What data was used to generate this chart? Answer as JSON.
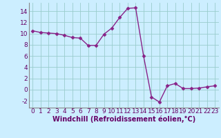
{
  "x": [
    0,
    1,
    2,
    3,
    4,
    5,
    6,
    7,
    8,
    9,
    10,
    11,
    12,
    13,
    14,
    15,
    16,
    17,
    18,
    19,
    20,
    21,
    22,
    23
  ],
  "y": [
    10.5,
    10.2,
    10.1,
    10.0,
    9.7,
    9.3,
    9.2,
    7.9,
    7.9,
    9.9,
    11.0,
    12.9,
    14.5,
    14.6,
    6.0,
    -1.3,
    -2.2,
    0.7,
    1.1,
    0.2,
    0.2,
    0.3,
    0.5,
    0.7
  ],
  "line_color": "#882288",
  "marker": "D",
  "marker_size": 2.5,
  "xlabel": "Windchill (Refroidissement éolien,°C)",
  "xlim": [
    -0.5,
    23.5
  ],
  "ylim": [
    -3.2,
    15.5
  ],
  "yticks": [
    -2,
    0,
    2,
    4,
    6,
    8,
    10,
    12,
    14
  ],
  "xticks": [
    0,
    1,
    2,
    3,
    4,
    5,
    6,
    7,
    8,
    9,
    10,
    11,
    12,
    13,
    14,
    15,
    16,
    17,
    18,
    19,
    20,
    21,
    22,
    23
  ],
  "grid_color": "#99cccc",
  "bg_color": "#cceeff",
  "tick_label_fontsize": 6.5,
  "xlabel_fontsize": 7,
  "line_width": 1.0,
  "spine_color": "#888888"
}
